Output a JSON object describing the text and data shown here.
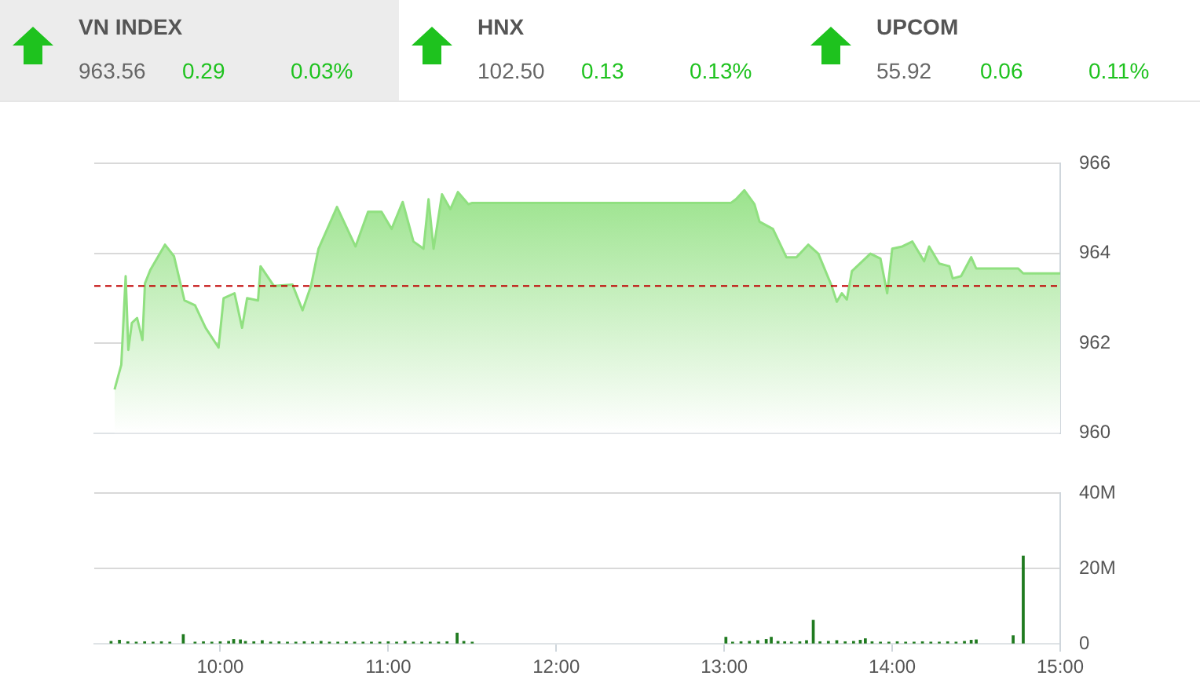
{
  "chart_data": [
    {
      "type": "other",
      "annotations": [
        "VN INDEX",
        "963.56",
        "0.29",
        "0.03%",
        "HNX",
        "102.50",
        "0.13",
        "0.13%",
        "UPCOM",
        "55.92",
        "0.06",
        "0.11%"
      ]
    },
    {
      "type": "area",
      "color": "#90e080",
      "tick_labels": "y",
      "grid": "y",
      "x": [
        9.371,
        9.411,
        9.437,
        9.453,
        9.474,
        9.505,
        9.537,
        9.552,
        9.584,
        9.671,
        9.725,
        9.787,
        9.85,
        9.913,
        9.99,
        10.02,
        10.085,
        10.13,
        10.16,
        10.225,
        10.24,
        10.32,
        10.43,
        10.49,
        10.54,
        10.585,
        10.695,
        10.805,
        10.88,
        10.96,
        11.02,
        11.086,
        11.15,
        11.21,
        11.24,
        11.27,
        11.32,
        11.37,
        11.415,
        11.477,
        11.5,
        13.04,
        13.07,
        13.12,
        13.18,
        13.21,
        13.29,
        13.37,
        13.43,
        13.5,
        13.56,
        13.64,
        13.67,
        13.7,
        13.73,
        13.76,
        13.87,
        13.93,
        13.97,
        14.0,
        14.06,
        14.12,
        14.19,
        14.22,
        14.28,
        14.34,
        14.36,
        14.41,
        14.47,
        14.5,
        14.75,
        14.78,
        15.0
      ],
      "values": [
        960.97,
        961.52,
        963.49,
        961.85,
        962.45,
        962.56,
        962.07,
        963.33,
        963.63,
        964.19,
        963.93,
        962.95,
        962.84,
        962.34,
        961.9,
        963.0,
        963.11,
        962.34,
        963.0,
        962.95,
        963.71,
        963.27,
        963.3,
        962.73,
        963.27,
        964.1,
        965.03,
        964.15,
        964.92,
        964.92,
        964.54,
        965.14,
        964.26,
        964.1,
        965.2,
        964.1,
        965.31,
        964.98,
        965.36,
        965.09,
        965.12,
        965.12,
        965.2,
        965.4,
        965.09,
        964.7,
        964.54,
        963.91,
        963.91,
        964.19,
        963.99,
        963.27,
        962.92,
        963.11,
        962.97,
        963.6,
        963.99,
        963.88,
        963.11,
        964.1,
        964.15,
        964.26,
        963.82,
        964.15,
        963.77,
        963.71,
        963.44,
        963.49,
        963.91,
        963.66,
        963.66,
        963.55,
        963.55
      ],
      "xlim": [
        9.25,
        15
      ],
      "ylim": [
        960,
        966
      ],
      "yticks": [
        960,
        962,
        964,
        966
      ],
      "ref_lines": [
        {
          "axis": "y",
          "value": 963.27,
          "color": "#c00000",
          "line_style": "dashed"
        }
      ]
    },
    {
      "type": "bar",
      "color": "#1f7a1f",
      "grid": "y",
      "x": [
        9.35,
        9.4,
        9.45,
        9.5,
        9.55,
        9.6,
        9.65,
        9.7,
        9.78,
        9.85,
        9.9,
        9.95,
        10.0,
        10.05,
        10.08,
        10.12,
        10.15,
        10.2,
        10.25,
        10.3,
        10.35,
        10.4,
        10.45,
        10.5,
        10.55,
        10.6,
        10.65,
        10.7,
        10.75,
        10.8,
        10.85,
        10.9,
        10.95,
        11.0,
        11.05,
        11.1,
        11.15,
        11.2,
        11.25,
        11.3,
        11.35,
        11.41,
        11.45,
        11.5,
        13.01,
        13.05,
        13.1,
        13.15,
        13.2,
        13.25,
        13.28,
        13.32,
        13.36,
        13.4,
        13.45,
        13.49,
        13.53,
        13.57,
        13.62,
        13.67,
        13.72,
        13.77,
        13.81,
        13.84,
        13.88,
        13.93,
        13.98,
        14.03,
        14.08,
        14.13,
        14.18,
        14.23,
        14.28,
        14.33,
        14.38,
        14.43,
        14.47,
        14.5,
        14.72,
        14.78
      ],
      "values": [
        0.6,
        0.9,
        0.5,
        0.4,
        0.5,
        0.4,
        0.5,
        0.4,
        2.4,
        0.4,
        0.5,
        0.4,
        0.5,
        0.6,
        1.1,
        1.0,
        0.6,
        0.5,
        0.8,
        0.4,
        0.5,
        0.4,
        0.4,
        0.5,
        0.4,
        0.6,
        0.4,
        0.4,
        0.5,
        0.4,
        0.4,
        0.4,
        0.4,
        0.5,
        0.4,
        0.6,
        0.4,
        0.4,
        0.4,
        0.4,
        0.5,
        2.8,
        0.6,
        0.4,
        1.7,
        0.4,
        0.5,
        0.6,
        0.8,
        1.1,
        1.7,
        0.6,
        0.5,
        0.4,
        0.5,
        0.8,
        6.2,
        0.5,
        0.6,
        0.8,
        0.5,
        0.6,
        0.9,
        1.3,
        0.5,
        0.4,
        0.4,
        0.5,
        0.4,
        0.4,
        0.5,
        0.4,
        0.4,
        0.5,
        0.4,
        0.6,
        0.9,
        1.0,
        2.1,
        23.3
      ],
      "xlim": [
        9.25,
        15
      ],
      "xticks": [
        {
          "value": 10,
          "label": "10:00"
        },
        {
          "value": 11,
          "label": "11:00"
        },
        {
          "value": 12,
          "label": "12:00"
        },
        {
          "value": 13,
          "label": "13:00"
        },
        {
          "value": 14,
          "label": "14:00"
        },
        {
          "value": 15,
          "label": "15:00"
        }
      ],
      "ylim": [
        0,
        40
      ],
      "yticks": [
        {
          "value": 0,
          "label": "0"
        },
        {
          "value": 20,
          "label": "20M"
        },
        {
          "value": 40,
          "label": "40M"
        }
      ]
    }
  ]
}
